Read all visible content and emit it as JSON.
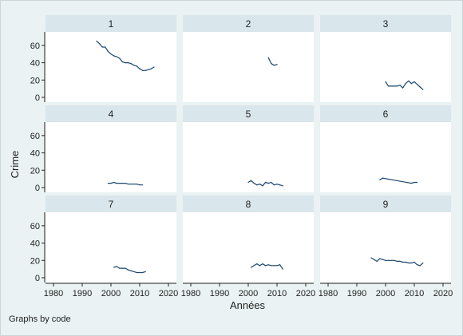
{
  "chart_data": {
    "type": "line",
    "layout": "small-multiples-3x3",
    "xlabel": "Années",
    "ylabel": "Crime",
    "xlim": [
      1980,
      2020
    ],
    "ylim": [
      0,
      70
    ],
    "xticks": [
      1980,
      1990,
      2000,
      2010,
      2020
    ],
    "yticks": [
      0,
      20,
      40,
      60
    ],
    "note": "Graphs by code",
    "line_color": "#1a476f",
    "strip_color": "#d9e6eb",
    "panel_color": "#ffffff",
    "background_color": "#eaf2f3",
    "panels": [
      {
        "label": "1",
        "points": [
          [
            1995,
            65
          ],
          [
            1996,
            62
          ],
          [
            1997,
            58
          ],
          [
            1998,
            58
          ],
          [
            1999,
            53
          ],
          [
            2000,
            50
          ],
          [
            2001,
            48
          ],
          [
            2002,
            47
          ],
          [
            2003,
            45
          ],
          [
            2004,
            41
          ],
          [
            2005,
            40
          ],
          [
            2006,
            40
          ],
          [
            2007,
            39
          ],
          [
            2008,
            37
          ],
          [
            2009,
            36
          ],
          [
            2010,
            33
          ],
          [
            2011,
            31
          ],
          [
            2012,
            31
          ],
          [
            2013,
            32
          ],
          [
            2014,
            33
          ],
          [
            2015,
            35
          ]
        ]
      },
      {
        "label": "2",
        "points": [
          [
            2007,
            46
          ],
          [
            2008,
            39
          ],
          [
            2009,
            37
          ],
          [
            2010,
            38
          ]
        ]
      },
      {
        "label": "3",
        "points": [
          [
            2000,
            18
          ],
          [
            2001,
            13
          ],
          [
            2002,
            13
          ],
          [
            2003,
            13
          ],
          [
            2004,
            13
          ],
          [
            2005,
            14
          ],
          [
            2006,
            11
          ],
          [
            2007,
            16
          ],
          [
            2008,
            19
          ],
          [
            2009,
            16
          ],
          [
            2010,
            18
          ],
          [
            2011,
            15
          ],
          [
            2012,
            12
          ],
          [
            2013,
            9
          ]
        ]
      },
      {
        "label": "4",
        "points": [
          [
            1999,
            5
          ],
          [
            2000,
            5
          ],
          [
            2001,
            6
          ],
          [
            2002,
            5
          ],
          [
            2003,
            5
          ],
          [
            2004,
            5
          ],
          [
            2005,
            5
          ],
          [
            2006,
            4
          ],
          [
            2007,
            4
          ],
          [
            2008,
            4
          ],
          [
            2009,
            4
          ],
          [
            2010,
            3
          ],
          [
            2011,
            3
          ]
        ]
      },
      {
        "label": "5",
        "points": [
          [
            2000,
            6
          ],
          [
            2001,
            8
          ],
          [
            2002,
            5
          ],
          [
            2003,
            3
          ],
          [
            2004,
            4
          ],
          [
            2005,
            2
          ],
          [
            2006,
            6
          ],
          [
            2007,
            5
          ],
          [
            2008,
            6
          ],
          [
            2009,
            3
          ],
          [
            2010,
            4
          ],
          [
            2011,
            3
          ],
          [
            2012,
            2
          ]
        ]
      },
      {
        "label": "6",
        "points": [
          [
            1998,
            9
          ],
          [
            1999,
            11
          ],
          [
            2009,
            5
          ],
          [
            2010,
            6
          ],
          [
            2011,
            6
          ]
        ]
      },
      {
        "label": "7",
        "points": [
          [
            2001,
            12
          ],
          [
            2002,
            13
          ],
          [
            2003,
            11
          ],
          [
            2004,
            11
          ],
          [
            2005,
            11
          ],
          [
            2006,
            9
          ],
          [
            2007,
            8
          ],
          [
            2008,
            7
          ],
          [
            2009,
            6
          ],
          [
            2010,
            6
          ],
          [
            2011,
            6
          ],
          [
            2012,
            7
          ]
        ]
      },
      {
        "label": "8",
        "points": [
          [
            2001,
            12
          ],
          [
            2002,
            14
          ],
          [
            2003,
            16
          ],
          [
            2004,
            14
          ],
          [
            2005,
            16
          ],
          [
            2006,
            14
          ],
          [
            2007,
            15
          ],
          [
            2008,
            14
          ],
          [
            2009,
            14
          ],
          [
            2010,
            14
          ],
          [
            2011,
            15
          ],
          [
            2012,
            10
          ]
        ]
      },
      {
        "label": "9",
        "points": [
          [
            1995,
            23
          ],
          [
            1996,
            21
          ],
          [
            1997,
            19
          ],
          [
            1998,
            22
          ],
          [
            1999,
            21
          ],
          [
            2000,
            20
          ],
          [
            2001,
            20
          ],
          [
            2002,
            20
          ],
          [
            2003,
            20
          ],
          [
            2004,
            19
          ],
          [
            2005,
            19
          ],
          [
            2006,
            18
          ],
          [
            2007,
            18
          ],
          [
            2008,
            17
          ],
          [
            2009,
            17
          ],
          [
            2010,
            18
          ],
          [
            2011,
            15
          ],
          [
            2012,
            14
          ],
          [
            2013,
            17
          ]
        ]
      }
    ]
  }
}
